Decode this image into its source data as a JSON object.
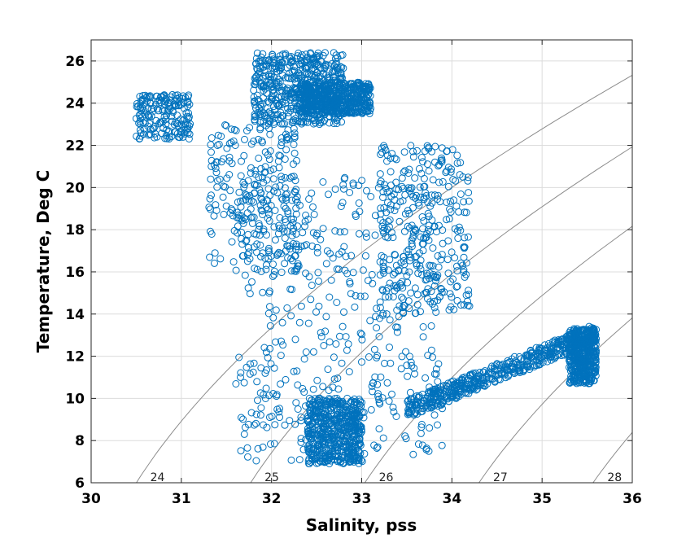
{
  "chart_data": {
    "type": "scatter",
    "title": "",
    "xlabel": "Salinity, pss",
    "ylabel": "Temperature, Deg C",
    "xlim": [
      30,
      36
    ],
    "ylim": [
      6,
      27
    ],
    "xticks": [
      30,
      31,
      32,
      33,
      34,
      35,
      36
    ],
    "yticks": [
      6,
      8,
      10,
      12,
      14,
      16,
      18,
      20,
      22,
      24,
      26
    ],
    "grid": true,
    "marker": "open-circle",
    "colors": {
      "points": "#0072BD",
      "contours": "#8c8c8c",
      "grid": "#dcdcdc"
    },
    "density_contours": [
      {
        "label": "24",
        "sigma": 24
      },
      {
        "label": "25",
        "sigma": 25
      },
      {
        "label": "26",
        "sigma": 26
      },
      {
        "label": "27",
        "sigma": 27
      },
      {
        "label": "28",
        "sigma": 28
      }
    ],
    "point_clusters": [
      {
        "s": [
          31.8,
          32.8
        ],
        "t": [
          23.0,
          26.4
        ],
        "density": 1.0
      },
      {
        "s": [
          32.3,
          33.1
        ],
        "t": [
          23.5,
          25.0
        ],
        "density": 1.0
      },
      {
        "s": [
          30.5,
          31.1
        ],
        "t": [
          22.3,
          24.4
        ],
        "density": 0.35
      },
      {
        "s": [
          31.3,
          32.3
        ],
        "t": [
          16.0,
          23.0
        ],
        "density": 0.45
      },
      {
        "s": [
          31.6,
          33.9
        ],
        "t": [
          7.0,
          20.5
        ],
        "density": 1.0
      },
      {
        "s": [
          32.4,
          33.0
        ],
        "t": [
          6.9,
          10.0
        ],
        "density": 1.0
      },
      {
        "s": [
          33.2,
          34.2
        ],
        "t": [
          14.0,
          22.0
        ],
        "density": 0.55
      },
      {
        "s": [
          33.5,
          35.6
        ],
        "t": [
          9.5,
          13.3
        ],
        "density": 1.0
      },
      {
        "s": [
          35.3,
          35.6
        ],
        "t": [
          10.7,
          13.3
        ],
        "density": 0.8
      }
    ]
  }
}
